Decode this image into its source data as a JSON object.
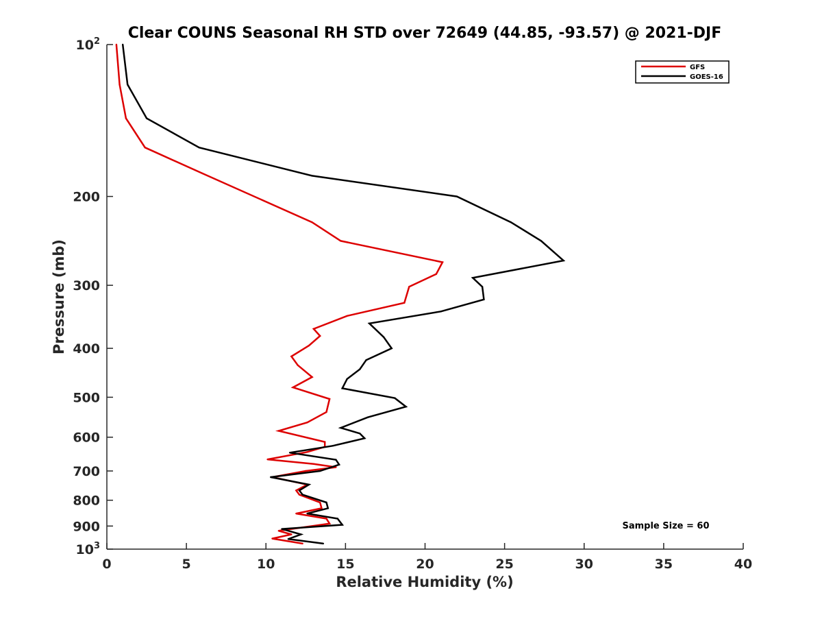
{
  "chart_data": {
    "type": "line",
    "title": "Clear COUNS Seasonal RH STD over 72649 (44.85, -93.57) @ 2021-DJF",
    "xlabel": "Relative Humidity (%)",
    "ylabel": "Pressure (mb)",
    "xlim": [
      0,
      40
    ],
    "ylim": [
      100,
      1000
    ],
    "yscale": "log",
    "y_reversed": true,
    "grid": false,
    "x_ticks": [
      0,
      5,
      10,
      15,
      20,
      25,
      30,
      35,
      40
    ],
    "x_tick_labels": [
      "0",
      "5",
      "10",
      "15",
      "20",
      "25",
      "30",
      "35",
      "40"
    ],
    "y_ticks": [
      {
        "value": 100,
        "base": "10",
        "exp": "2"
      },
      {
        "value": 200,
        "label": "200"
      },
      {
        "value": 300,
        "label": "300"
      },
      {
        "value": 400,
        "label": "400"
      },
      {
        "value": 500,
        "label": "500"
      },
      {
        "value": 600,
        "label": "600"
      },
      {
        "value": 700,
        "label": "700"
      },
      {
        "value": 800,
        "label": "800"
      },
      {
        "value": 900,
        "label": "900"
      },
      {
        "value": 1000,
        "base": "10",
        "exp": "3"
      }
    ],
    "legend": {
      "location": "top-right",
      "entries": [
        "GFS",
        "GOES-16"
      ]
    },
    "annotation": "Sample Size = 60",
    "series": [
      {
        "name": "GFS",
        "color": "#dd0000",
        "x": [
          0.6,
          0.8,
          1.2,
          2.4,
          6.0,
          12.9,
          14.7,
          21.1,
          20.7,
          19.0,
          18.7,
          15.1,
          13.0,
          13.4,
          12.7,
          11.6,
          12.0,
          12.9,
          11.7,
          14.0,
          13.8,
          12.6,
          10.8,
          13.7,
          13.7,
          12.6,
          10.1,
          13.0,
          14.4,
          12.5,
          10.4,
          12.6,
          11.9,
          12.1,
          13.4,
          13.5,
          11.9,
          13.8,
          14.0,
          10.8,
          11.6,
          10.4,
          12.3
        ],
        "y": [
          100,
          120,
          140,
          160,
          180,
          225,
          245,
          270,
          285,
          302,
          325,
          345,
          366,
          378,
          395,
          415,
          432,
          456,
          478,
          504,
          535,
          561,
          583,
          613,
          627,
          642,
          664,
          678,
          688,
          700,
          720,
          745,
          765,
          780,
          808,
          830,
          850,
          870,
          890,
          920,
          935,
          953,
          975
        ]
      },
      {
        "name": "GOES-16",
        "color": "#000000",
        "x": [
          1.0,
          1.3,
          2.5,
          5.8,
          12.9,
          22.0,
          25.4,
          27.3,
          28.7,
          23.0,
          23.6,
          23.7,
          21.0,
          16.5,
          17.4,
          17.9,
          16.3,
          15.9,
          15.1,
          14.8,
          18.1,
          18.8,
          16.4,
          14.7,
          15.9,
          16.2,
          14.2,
          11.5,
          14.4,
          14.6,
          13.4,
          10.3,
          12.7,
          12.1,
          12.3,
          13.8,
          13.9,
          12.6,
          14.5,
          14.8,
          11.0,
          12.2,
          11.4,
          13.6
        ],
        "y": [
          100,
          120,
          140,
          160,
          182,
          200,
          225,
          245,
          268,
          290,
          302,
          320,
          338,
          357,
          380,
          400,
          422,
          440,
          460,
          480,
          502,
          522,
          548,
          575,
          590,
          603,
          624,
          644,
          665,
          680,
          700,
          720,
          745,
          765,
          780,
          808,
          830,
          850,
          870,
          895,
          912,
          935,
          955,
          975
        ]
      }
    ]
  }
}
